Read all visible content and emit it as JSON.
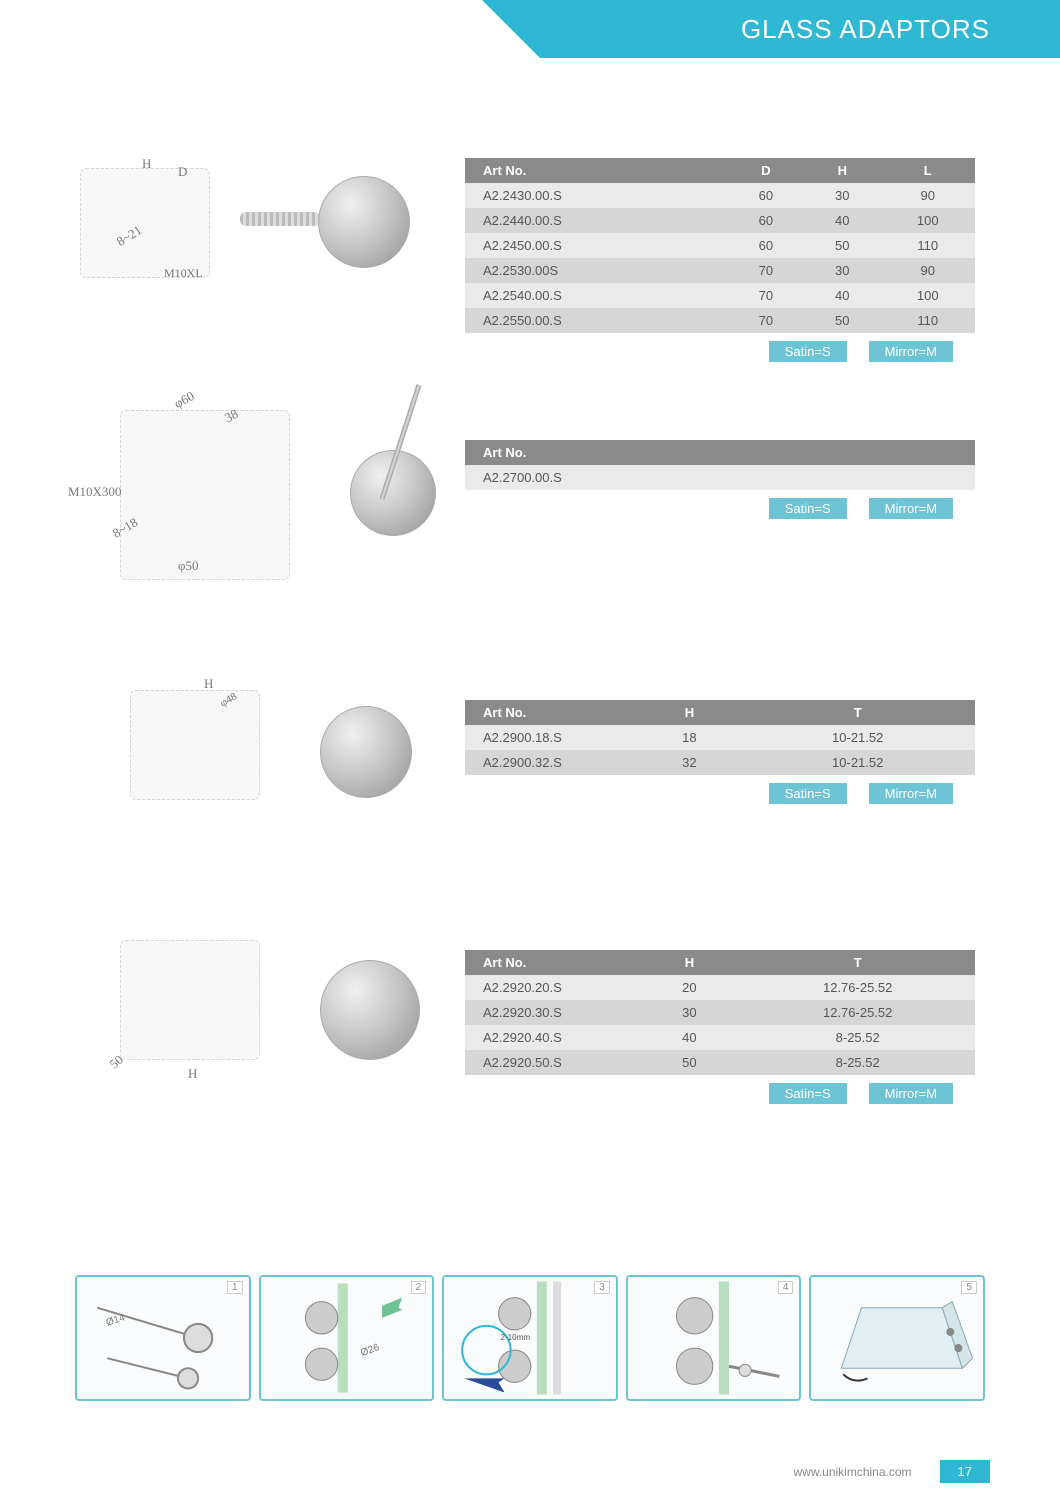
{
  "header": {
    "title": "GLASS ADAPTORS"
  },
  "colors": {
    "accent": "#2fb8d4",
    "legend_bg": "#6cc4d5",
    "table_header_bg": "#8a8a8a",
    "row_odd": "#eaeaea",
    "row_even": "#d6d6d6",
    "text_muted": "#555"
  },
  "finish_legend": {
    "satin": "Satin=S",
    "mirror": "Mirror=M"
  },
  "section1": {
    "dims": {
      "h_label": "H",
      "d_label": "D",
      "thick_label": "8~21",
      "thread_label": "M10XL"
    },
    "table": {
      "columns": [
        "Art No.",
        "D",
        "H",
        "L"
      ],
      "rows": [
        [
          "A2.2430.00.S",
          "60",
          "30",
          "90"
        ],
        [
          "A2.2440.00.S",
          "60",
          "40",
          "100"
        ],
        [
          "A2.2450.00.S",
          "60",
          "50",
          "110"
        ],
        [
          "A2.2530.00S",
          "70",
          "30",
          "90"
        ],
        [
          "A2.2540.00.S",
          "70",
          "40",
          "100"
        ],
        [
          "A2.2550.00.S",
          "70",
          "50",
          "110"
        ]
      ]
    }
  },
  "section2": {
    "dims": {
      "phi60": "φ60",
      "phi50": "φ50",
      "len38": "38",
      "thick": "8~18",
      "thread": "M10X300"
    },
    "table": {
      "columns": [
        "Art No."
      ],
      "rows": [
        [
          "A2.2700.00.S"
        ]
      ]
    }
  },
  "section3": {
    "dims": {
      "h_label": "H",
      "phi48": "φ48"
    },
    "table": {
      "columns": [
        "Art No.",
        "H",
        "T"
      ],
      "rows": [
        [
          "A2.2900.18.S",
          "18",
          "10-21.52"
        ],
        [
          "A2.2900.32.S",
          "32",
          "10-21.52"
        ]
      ]
    }
  },
  "section4": {
    "dims": {
      "h_label": "H",
      "dia50": "50"
    },
    "table": {
      "columns": [
        "Art No.",
        "H",
        "T"
      ],
      "rows": [
        [
          "A2.2920.20.S",
          "20",
          "12.76-25.52"
        ],
        [
          "A2.2920.30.S",
          "30",
          "12.76-25.52"
        ],
        [
          "A2.2920.40.S",
          "40",
          "8-25.52"
        ],
        [
          "A2.2920.50.S",
          "50",
          "8-25.52"
        ]
      ]
    }
  },
  "install": {
    "step_numbers": [
      "1",
      "2",
      "3",
      "4",
      "5"
    ],
    "annot": {
      "hole": "Ø14",
      "wrench": "Ø26",
      "gap": "2-10mm Maxi"
    }
  },
  "footer": {
    "url": "www.unikimchina.com",
    "page": "17"
  }
}
